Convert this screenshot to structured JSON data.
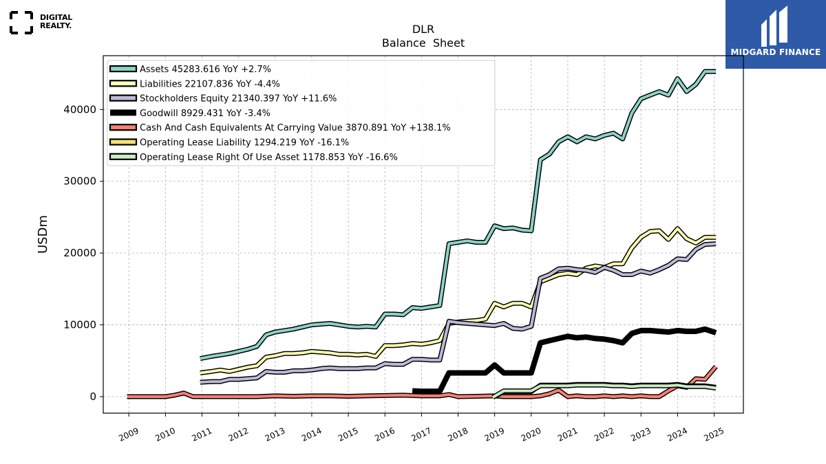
{
  "logos": {
    "left_line1": "DIGITAL",
    "left_line2": "REALTY.",
    "right": "MIDGARD FINANCE"
  },
  "chart_data": {
    "type": "line",
    "title": "DLR",
    "subtitle": "Balance  Sheet",
    "ylabel": "USDm",
    "xlabel": "",
    "xlim": [
      2008.3,
      2025.8
    ],
    "ylim": [
      -2300,
      47500
    ],
    "yticks": [
      0,
      10000,
      20000,
      30000,
      40000
    ],
    "xticks": [
      "2009",
      "2010",
      "2011",
      "2012",
      "2013",
      "2014",
      "2015",
      "2016",
      "2017",
      "2018",
      "2019",
      "2020",
      "2021",
      "2022",
      "2023",
      "2024",
      "2025"
    ],
    "grid": true,
    "legend_position": "top-left",
    "series": [
      {
        "name": "Assets  45283.616 YoY +2.7%",
        "color": "#8dd3c7",
        "width": 4,
        "x": [
          2010.95,
          2011.25,
          2011.5,
          2011.75,
          2012.0,
          2012.25,
          2012.5,
          2012.75,
          2013.0,
          2013.25,
          2013.5,
          2013.75,
          2014.0,
          2014.25,
          2014.5,
          2014.75,
          2015.0,
          2015.25,
          2015.5,
          2015.75,
          2016.0,
          2016.25,
          2016.5,
          2016.75,
          2017.0,
          2017.25,
          2017.5,
          2017.75,
          2018.0,
          2018.25,
          2018.5,
          2018.75,
          2019.0,
          2019.25,
          2019.5,
          2019.75,
          2020.0,
          2020.25,
          2020.5,
          2020.75,
          2021.0,
          2021.25,
          2021.5,
          2021.75,
          2022.0,
          2022.25,
          2022.5,
          2022.75,
          2023.0,
          2023.25,
          2023.5,
          2023.75,
          2024.0,
          2024.25,
          2024.5,
          2024.75,
          2025.05
        ],
        "y": [
          5300,
          5600,
          5800,
          6000,
          6300,
          6600,
          7000,
          8600,
          9000,
          9200,
          9400,
          9700,
          10000,
          10100,
          10200,
          10000,
          9800,
          9700,
          9800,
          9700,
          11500,
          11500,
          11400,
          12400,
          12300,
          12500,
          12700,
          21300,
          21500,
          21700,
          21500,
          21500,
          23800,
          23400,
          23500,
          23200,
          23100,
          33000,
          33800,
          35500,
          36200,
          35500,
          36200,
          35900,
          36400,
          36700,
          35900,
          39500,
          41500,
          42000,
          42500,
          42000,
          44300,
          42500,
          43500,
          45300,
          45300
        ]
      },
      {
        "name": "Liabilities  22107.836 YoY -4.4%",
        "color": "#ffffb3",
        "width": 4,
        "x": [
          2010.95,
          2011.25,
          2011.5,
          2011.75,
          2012.0,
          2012.25,
          2012.5,
          2012.75,
          2013.0,
          2013.25,
          2013.5,
          2013.75,
          2014.0,
          2014.25,
          2014.5,
          2014.75,
          2015.0,
          2015.25,
          2015.5,
          2015.75,
          2016.0,
          2016.25,
          2016.5,
          2016.75,
          2017.0,
          2017.25,
          2017.5,
          2017.75,
          2018.0,
          2018.25,
          2018.5,
          2018.75,
          2019.0,
          2019.25,
          2019.5,
          2019.75,
          2020.0,
          2020.25,
          2020.5,
          2020.75,
          2021.0,
          2021.25,
          2021.5,
          2021.75,
          2022.0,
          2022.25,
          2022.5,
          2022.75,
          2023.0,
          2023.25,
          2023.5,
          2023.75,
          2024.0,
          2024.25,
          2024.5,
          2024.75,
          2025.05
        ],
        "y": [
          3300,
          3500,
          3700,
          3500,
          3800,
          4100,
          4300,
          5500,
          5700,
          6000,
          6000,
          6100,
          6300,
          6200,
          6100,
          5900,
          5900,
          5800,
          5900,
          5600,
          7100,
          7100,
          7200,
          7400,
          7300,
          7500,
          7800,
          10200,
          10400,
          10500,
          10600,
          10800,
          13000,
          12500,
          13000,
          13000,
          12500,
          16000,
          16500,
          17000,
          17200,
          17000,
          17900,
          18200,
          18000,
          18500,
          18500,
          20700,
          22200,
          23000,
          23100,
          21900,
          23400,
          22000,
          21400,
          22200,
          22200
        ]
      },
      {
        "name": "Stockholders Equity  21340.397 YoY +11.6%",
        "color": "#bebada",
        "width": 4,
        "x": [
          2010.95,
          2011.25,
          2011.5,
          2011.75,
          2012.0,
          2012.25,
          2012.5,
          2012.75,
          2013.0,
          2013.25,
          2013.5,
          2013.75,
          2014.0,
          2014.25,
          2014.5,
          2014.75,
          2015.0,
          2015.25,
          2015.5,
          2015.75,
          2016.0,
          2016.25,
          2016.5,
          2016.75,
          2017.0,
          2017.25,
          2017.5,
          2017.75,
          2018.0,
          2018.25,
          2018.5,
          2018.75,
          2019.0,
          2019.25,
          2019.5,
          2019.75,
          2020.0,
          2020.25,
          2020.5,
          2020.75,
          2021.0,
          2021.25,
          2021.5,
          2021.75,
          2022.0,
          2022.25,
          2022.5,
          2022.75,
          2023.0,
          2023.25,
          2023.5,
          2023.75,
          2024.0,
          2024.25,
          2024.5,
          2024.75,
          2025.05
        ],
        "y": [
          2000,
          2100,
          2100,
          2400,
          2400,
          2500,
          2600,
          3500,
          3400,
          3400,
          3600,
          3600,
          3700,
          3900,
          4000,
          3900,
          3900,
          3900,
          4000,
          4000,
          4600,
          4500,
          4500,
          5200,
          5200,
          5100,
          5100,
          10500,
          10300,
          10200,
          10100,
          10000,
          9900,
          10200,
          9500,
          9400,
          9800,
          16500,
          17000,
          17800,
          17900,
          17700,
          17600,
          17300,
          18000,
          17600,
          17000,
          17000,
          17500,
          17200,
          17700,
          18300,
          19200,
          19100,
          20500,
          21200,
          21300
        ]
      },
      {
        "name": "Goodwill  8929.431 YoY -3.4%",
        "color": "#000000",
        "width": 8,
        "x": [
          2016.75,
          2017.0,
          2017.25,
          2017.5,
          2017.75,
          2018.0,
          2018.25,
          2018.5,
          2018.75,
          2019.0,
          2019.25,
          2019.5,
          2019.75,
          2020.0,
          2020.25,
          2020.5,
          2020.75,
          2021.0,
          2021.25,
          2021.5,
          2021.75,
          2022.0,
          2022.25,
          2022.5,
          2022.75,
          2023.0,
          2023.25,
          2023.5,
          2023.75,
          2024.0,
          2024.25,
          2024.5,
          2024.75,
          2025.05
        ],
        "y": [
          800,
          750,
          750,
          750,
          3300,
          3300,
          3300,
          3300,
          3300,
          4400,
          3300,
          3300,
          3300,
          3300,
          7500,
          7800,
          8100,
          8400,
          8200,
          8300,
          8100,
          8000,
          7800,
          7500,
          8800,
          9200,
          9200,
          9100,
          9000,
          9200,
          9100,
          9100,
          9400,
          8900
        ]
      },
      {
        "name": "Cash And Cash Equivalents At Carrying Value  3870.891 YoY +138.1%",
        "color": "#fb8072",
        "width": 4,
        "x": [
          2008.95,
          2009.25,
          2009.5,
          2009.75,
          2010.0,
          2010.25,
          2010.5,
          2010.75,
          2011.0,
          2011.5,
          2012.0,
          2012.5,
          2013.0,
          2013.5,
          2014.0,
          2014.5,
          2015.0,
          2015.5,
          2016.0,
          2016.5,
          2017.0,
          2017.5,
          2017.75,
          2018.0,
          2018.5,
          2019.0,
          2019.25,
          2019.5,
          2019.75,
          2020.0,
          2020.25,
          2020.5,
          2020.75,
          2021.0,
          2021.25,
          2021.5,
          2021.75,
          2022.0,
          2022.25,
          2022.5,
          2022.75,
          2023.0,
          2023.25,
          2023.5,
          2023.75,
          2024.0,
          2024.25,
          2024.5,
          2024.75,
          2025.05
        ],
        "y": [
          0,
          0,
          0,
          0,
          0,
          200,
          500,
          0,
          0,
          0,
          0,
          0,
          100,
          50,
          100,
          100,
          50,
          100,
          150,
          200,
          100,
          100,
          300,
          0,
          50,
          100,
          0,
          0,
          0,
          0,
          100,
          400,
          900,
          0,
          100,
          0,
          0,
          100,
          0,
          100,
          0,
          100,
          0,
          0,
          800,
          1500,
          1300,
          2500,
          2400,
          4200
        ]
      },
      {
        "name": "Operating Lease Liability  1294.219 YoY -16.1%",
        "color": "#f2e07a",
        "width": 4,
        "x": [
          2019.0,
          2019.25,
          2019.5,
          2019.75,
          2020.0,
          2020.25,
          2020.5,
          2020.75,
          2021.0,
          2021.25,
          2021.5,
          2021.75,
          2022.0,
          2022.25,
          2022.5,
          2022.75,
          2023.0,
          2023.25,
          2023.5,
          2023.75,
          2024.0,
          2024.25,
          2024.5,
          2024.75,
          2025.05
        ],
        "y": [
          0,
          700,
          700,
          700,
          700,
          1600,
          1600,
          1600,
          1600,
          1700,
          1700,
          1700,
          1700,
          1600,
          1600,
          1500,
          1600,
          1600,
          1600,
          1600,
          1700,
          1500,
          1500,
          1500,
          1300
        ]
      },
      {
        "name": "Operating Lease Right Of Use Asset  1178.853 YoY -16.6%",
        "color": "#ccebc5",
        "width": 4,
        "x": [
          2018.95,
          2019.25,
          2019.5,
          2019.75,
          2020.0,
          2020.25,
          2020.5,
          2020.75,
          2021.0,
          2021.25,
          2021.5,
          2021.75,
          2022.0,
          2022.25,
          2022.5,
          2022.75,
          2023.0,
          2023.25,
          2023.5,
          2023.75,
          2024.0,
          2024.25,
          2024.5,
          2024.75,
          2025.05
        ],
        "y": [
          -100,
          800,
          800,
          800,
          800,
          1500,
          1500,
          1500,
          1500,
          1600,
          1600,
          1600,
          1600,
          1500,
          1500,
          1400,
          1500,
          1500,
          1500,
          1500,
          1600,
          1400,
          1400,
          1400,
          1200
        ]
      }
    ]
  }
}
